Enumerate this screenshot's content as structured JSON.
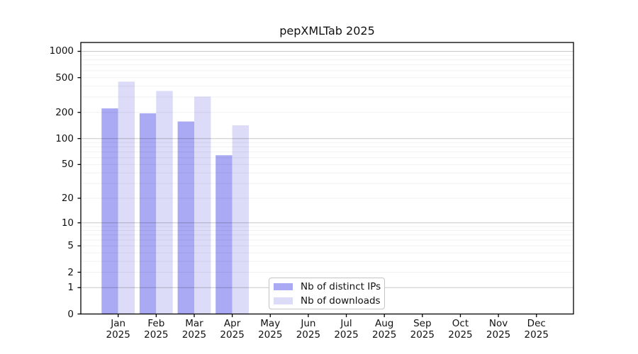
{
  "chart_data": {
    "type": "bar",
    "title": "pepXMLTab 2025",
    "year": "2025",
    "categories": [
      "Jan",
      "Feb",
      "Mar",
      "Apr",
      "May",
      "Jun",
      "Jul",
      "Aug",
      "Sep",
      "Oct",
      "Nov",
      "Dec"
    ],
    "series": [
      {
        "name": "Nb of distinct IPs",
        "key": "distinct-ips",
        "color": "#a9a9f4",
        "values": [
          222,
          195,
          157,
          64,
          0,
          0,
          0,
          0,
          0,
          0,
          0,
          0
        ]
      },
      {
        "name": "Nb of downloads",
        "key": "downloads",
        "color": "#dcdcf8",
        "values": [
          450,
          352,
          303,
          142,
          0,
          0,
          0,
          0,
          0,
          0,
          0,
          0
        ]
      }
    ],
    "y_ticks": [
      0,
      1,
      2,
      5,
      10,
      20,
      50,
      100,
      200,
      500,
      1000
    ],
    "y_scale": "log1p",
    "ylim": [
      0,
      1250
    ],
    "xlabel": "",
    "ylabel": "",
    "grid": "horizontal major+minor, drawn over bars",
    "legend_position": "bottom-center"
  }
}
